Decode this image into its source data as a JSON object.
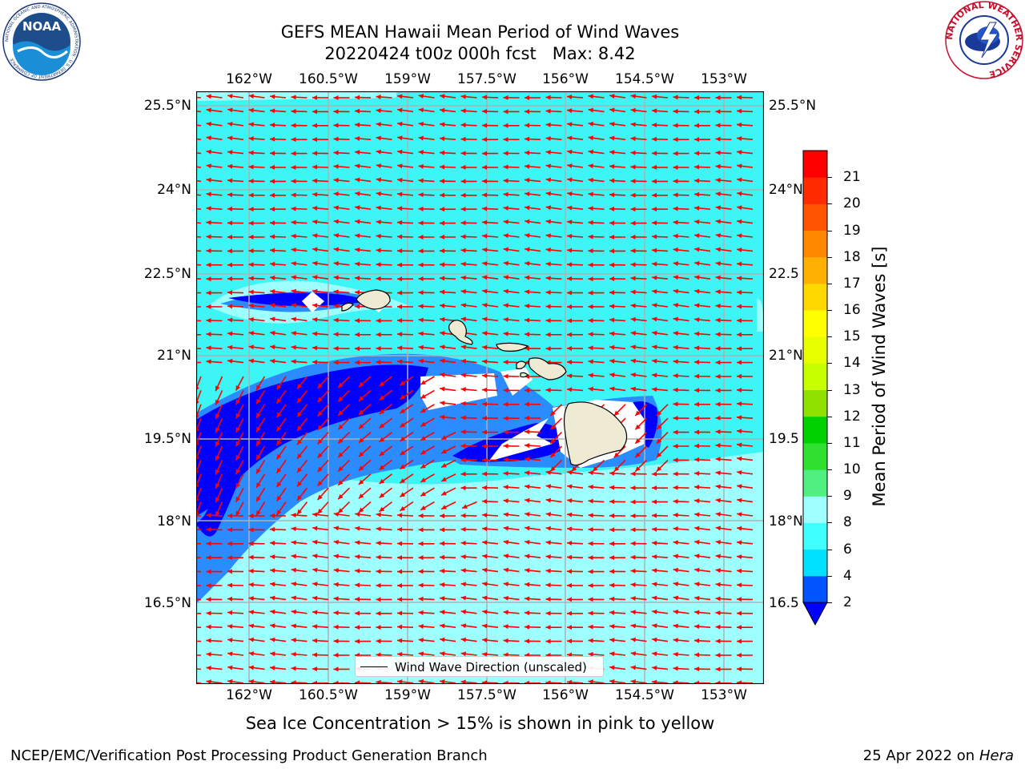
{
  "title": {
    "line1": "GEFS MEAN Hawaii Mean Period of Wind Waves",
    "line2": "20220424 t00z 000h fcst   Max: 8.42"
  },
  "map": {
    "longitude_ticks": [
      "162°W",
      "160.5°W",
      "159°W",
      "157.5°W",
      "156°W",
      "154.5°W",
      "153°W"
    ],
    "latitude_ticks": [
      "25.5°N",
      "24°N",
      "22.5°N",
      "21°N",
      "19.5°N",
      "18°N",
      "16.5°N"
    ],
    "right_latitude_ticks": [
      "25.5°N",
      "24°N",
      "22.5",
      "21°N",
      "19.5",
      "18°N",
      "16.5"
    ],
    "arrow_color": "#ff0000",
    "land_color": "#eeead4",
    "ocean_fill_colors": {
      "2-4": "#0000ff",
      "4-6": "#2a8cff",
      "6-8": "#3ef5f5",
      "8-9": "#9effff"
    }
  },
  "legend": {
    "label": "Wind Wave Direction (unscaled)"
  },
  "colorbar": {
    "label": "Mean Period of Wind Waves [s]",
    "ticks": [
      "2",
      "4",
      "6",
      "8",
      "9",
      "10",
      "11",
      "12",
      "13",
      "14",
      "15",
      "16",
      "17",
      "18",
      "19",
      "20",
      "21"
    ],
    "colors": [
      "#0055ff",
      "#00e0ff",
      "#40ffff",
      "#a0ffff",
      "#50f080",
      "#30e030",
      "#00d000",
      "#90e000",
      "#c8ff00",
      "#e8ff00",
      "#ffff00",
      "#ffd800",
      "#ffb000",
      "#ff8800",
      "#ff5500",
      "#ff2a00",
      "#ff0000"
    ],
    "underflow_color": "#0000ff"
  },
  "caption": "Sea Ice Concentration > 15% is shown in pink to yellow",
  "footer": {
    "left": "NCEP/EMC/Verification Post Processing Product Generation Branch",
    "right_prefix": "25 Apr 2022 on ",
    "right_host": "Hera"
  },
  "logos": {
    "noaa_text": "NOAA",
    "noaa_ring": "NATIONAL OCEANIC AND ATMOSPHERIC ADMINISTRATION · U.S. DEPARTMENT OF COMMERCE",
    "nws_ring": "NATIONAL WEATHER SERVICE"
  }
}
